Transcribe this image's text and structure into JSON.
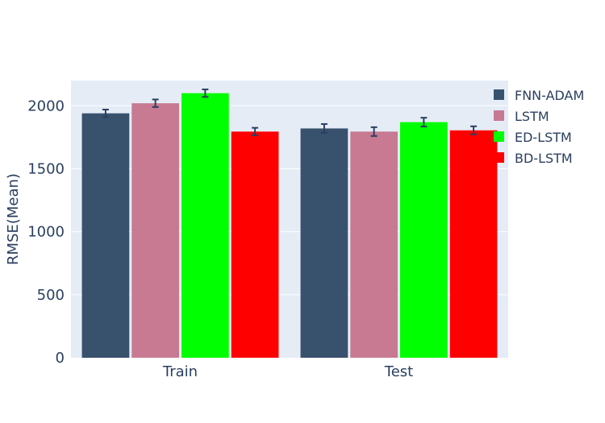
{
  "chart_data": {
    "type": "bar",
    "categories": [
      "Train",
      "Test"
    ],
    "ylabel": "RMSE(Mean)",
    "xlabel": "",
    "ylim": [
      0,
      2200
    ],
    "yticks": [
      0,
      500,
      1000,
      1500,
      2000
    ],
    "grid": true,
    "legend_position": "right",
    "plot_background": "#e5ecf6",
    "series": [
      {
        "name": "FNN-ADAM",
        "color": "#38526e",
        "values": [
          1940,
          1820
        ],
        "errors": [
          30,
          35
        ]
      },
      {
        "name": "LSTM",
        "color": "#c77a92",
        "values": [
          2020,
          1795
        ],
        "errors": [
          30,
          35
        ]
      },
      {
        "name": "ED-LSTM",
        "color": "#00ff00",
        "values": [
          2100,
          1870
        ],
        "errors": [
          30,
          35
        ]
      },
      {
        "name": "BD-LSTM",
        "color": "#ff0000",
        "values": [
          1795,
          1805
        ],
        "errors": [
          30,
          32
        ]
      }
    ]
  }
}
